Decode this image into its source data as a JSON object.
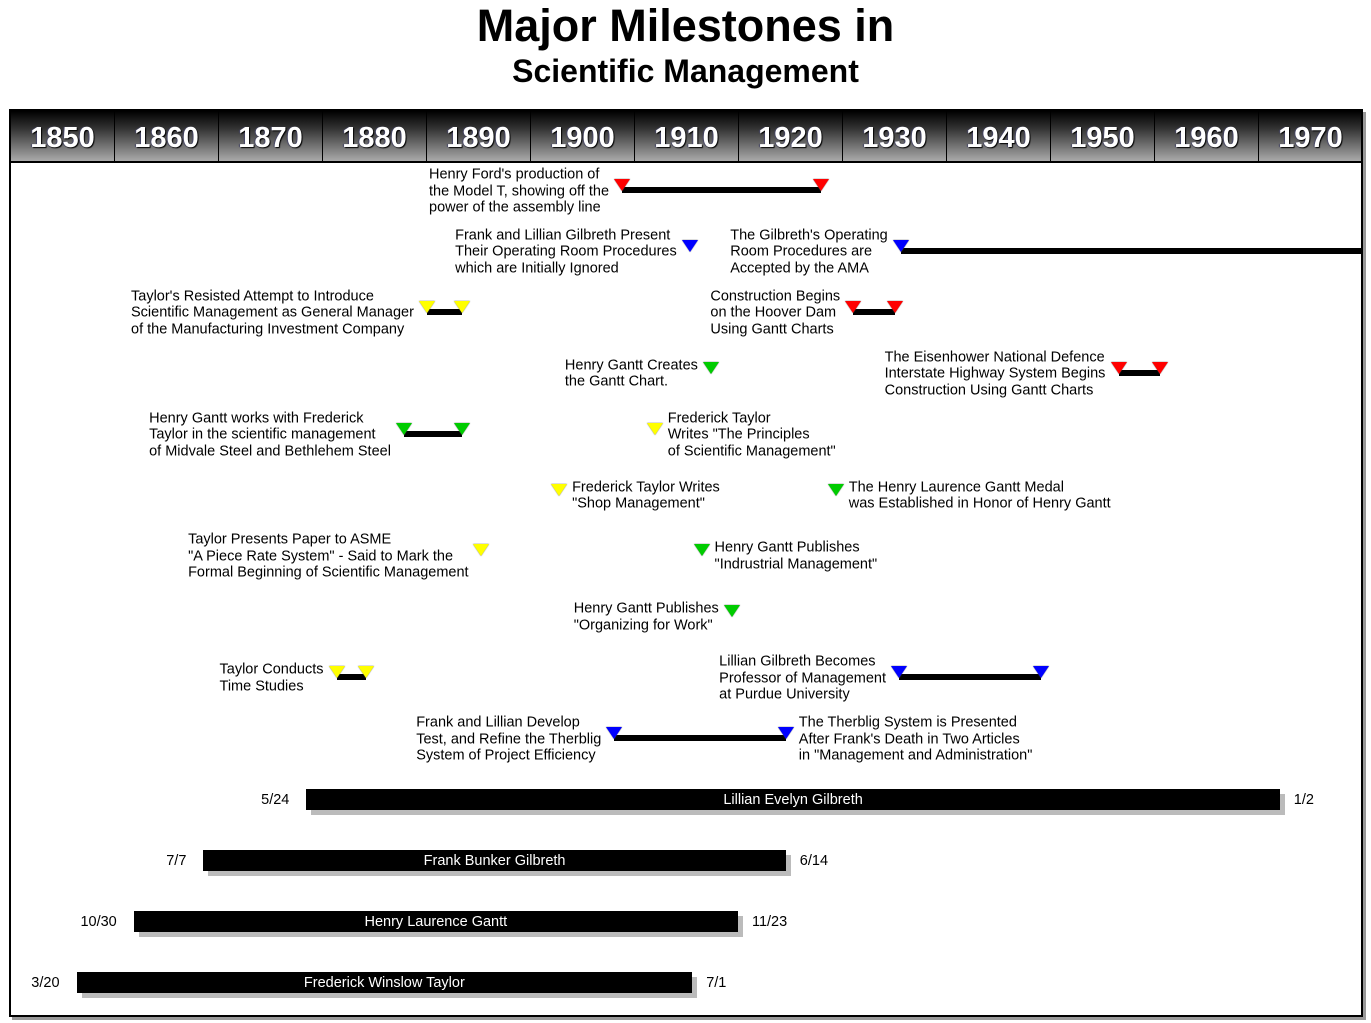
{
  "title": "Major Milestones in",
  "subtitle": "Scientific Management",
  "chart_data": {
    "type": "timeline",
    "x_axis": {
      "range": [
        1850,
        1980
      ],
      "tick_labels": [
        "1850",
        "1860",
        "1870",
        "1880",
        "1890",
        "1900",
        "1910",
        "1920",
        "1930",
        "1940",
        "1950",
        "1960",
        "1970"
      ]
    },
    "colors": {
      "red": "#ff0000",
      "blue": "#0000ff",
      "yellow": "#ffff00",
      "green": "#00cc00"
    },
    "milestones": [
      {
        "row": 1,
        "color": "red",
        "start": 1908.75,
        "end": 1927.9,
        "label_side": "left",
        "label": [
          "Henry Ford's production of",
          "the Model T, showing off the",
          "power of the assembly line"
        ]
      },
      {
        "row": 2,
        "color": "blue",
        "start": 1915.3,
        "label_side": "left",
        "label": [
          "Frank and Lillian Gilbreth Present",
          "Their Operating Room Procedures",
          "which are Initially Ignored"
        ]
      },
      {
        "row": 2,
        "color": "blue",
        "start": 1935.6,
        "end": 1980,
        "label_side": "left",
        "label": [
          "The Gilbreth's Operating",
          "Room Procedures are",
          "Accepted by the AMA"
        ]
      },
      {
        "row": 3,
        "color": "yellow",
        "start": 1890,
        "end": 1893.4,
        "label_side": "left",
        "label": [
          "Taylor's Resisted Attempt to Introduce",
          "Scientific Management as General Manager",
          "of the Manufacturing Investment Company"
        ]
      },
      {
        "row": 3,
        "color": "red",
        "start": 1931,
        "end": 1935,
        "label_side": "left",
        "label": [
          "Construction Begins",
          "on the Hoover Dam",
          "Using Gantt Charts"
        ]
      },
      {
        "row": 4,
        "color": "green",
        "start": 1917.3,
        "label_side": "left",
        "label": [
          "Henry Gantt Creates",
          "the Gantt Chart."
        ]
      },
      {
        "row": 4,
        "color": "red",
        "start": 1956.5,
        "end": 1960.5,
        "label_side": "left",
        "label": [
          "The Eisenhower National Defence",
          "Interstate Highway System Begins",
          "Construction Using Gantt Charts"
        ]
      },
      {
        "row": 5,
        "color": "green",
        "start": 1887.8,
        "end": 1893.4,
        "label_side": "left",
        "label": [
          "Henry Gantt works with Frederick",
          "Taylor in the scientific management",
          "of Midvale Steel and Bethlehem Steel"
        ]
      },
      {
        "row": 5,
        "color": "yellow",
        "start": 1911.9,
        "label_side": "right",
        "label": [
          "Frederick Taylor",
          "Writes \"The Principles",
          "of Scientific Management\""
        ]
      },
      {
        "row": 6,
        "color": "yellow",
        "start": 1902.7,
        "label_side": "right",
        "label": [
          "Frederick Taylor Writes",
          "\"Shop Management\""
        ]
      },
      {
        "row": 6,
        "color": "green",
        "start": 1929.3,
        "label_side": "right",
        "label": [
          "The Henry Laurence Gantt Medal",
          "was Established in Honor of Henry Gantt"
        ]
      },
      {
        "row": 7,
        "color": "yellow",
        "start": 1895.2,
        "label_side": "left",
        "label": [
          "Taylor Presents Paper to ASME",
          "\"A Piece Rate System\" - Said to Mark the",
          "Formal Beginning of Scientific Management"
        ]
      },
      {
        "row": 7,
        "color": "green",
        "start": 1916.4,
        "label_side": "right",
        "label": [
          "Henry Gantt Publishes",
          "\"Indrustrial Management\""
        ]
      },
      {
        "row": 8,
        "color": "green",
        "start": 1919.3,
        "label_side": "left",
        "label": [
          "Henry Gantt Publishes",
          "\"Organizing for Work\""
        ]
      },
      {
        "row": 9,
        "color": "yellow",
        "start": 1881.3,
        "end": 1884.1,
        "label_side": "left",
        "label": [
          "Taylor Conducts",
          "Time Studies"
        ]
      },
      {
        "row": 9,
        "color": "blue",
        "start": 1935.4,
        "end": 1949,
        "label_side": "left",
        "label": [
          "Lillian Gilbreth Becomes",
          "Professor of Management",
          "at Purdue University"
        ]
      },
      {
        "row": 10,
        "color": "blue",
        "start": 1908,
        "end": 1924.5,
        "label_side": "both",
        "label": [
          "Frank and Lillian Develop",
          "Test, and Refine the Therblig",
          "System of Project Efficiency"
        ],
        "end_label": [
          "The Therblig System is Presented",
          "After Frank's Death in Two Articles",
          "in \"Management and Administration\""
        ]
      }
    ],
    "lifespans": [
      {
        "name": "Lillian Evelyn Gilbreth",
        "start": 1878.4,
        "end": 1972.0,
        "start_label": "5/24",
        "end_label": "1/2"
      },
      {
        "name": "Frank Bunker Gilbreth",
        "start": 1868.5,
        "end": 1924.5,
        "start_label": "7/7",
        "end_label": "6/14"
      },
      {
        "name": "Henry Laurence Gantt",
        "start": 1861.8,
        "end": 1919.9,
        "start_label": "10/30",
        "end_label": "11/23"
      },
      {
        "name": "Frederick Winslow Taylor",
        "start": 1856.3,
        "end": 1915.5,
        "start_label": "3/20",
        "end_label": "7/1"
      }
    ]
  }
}
